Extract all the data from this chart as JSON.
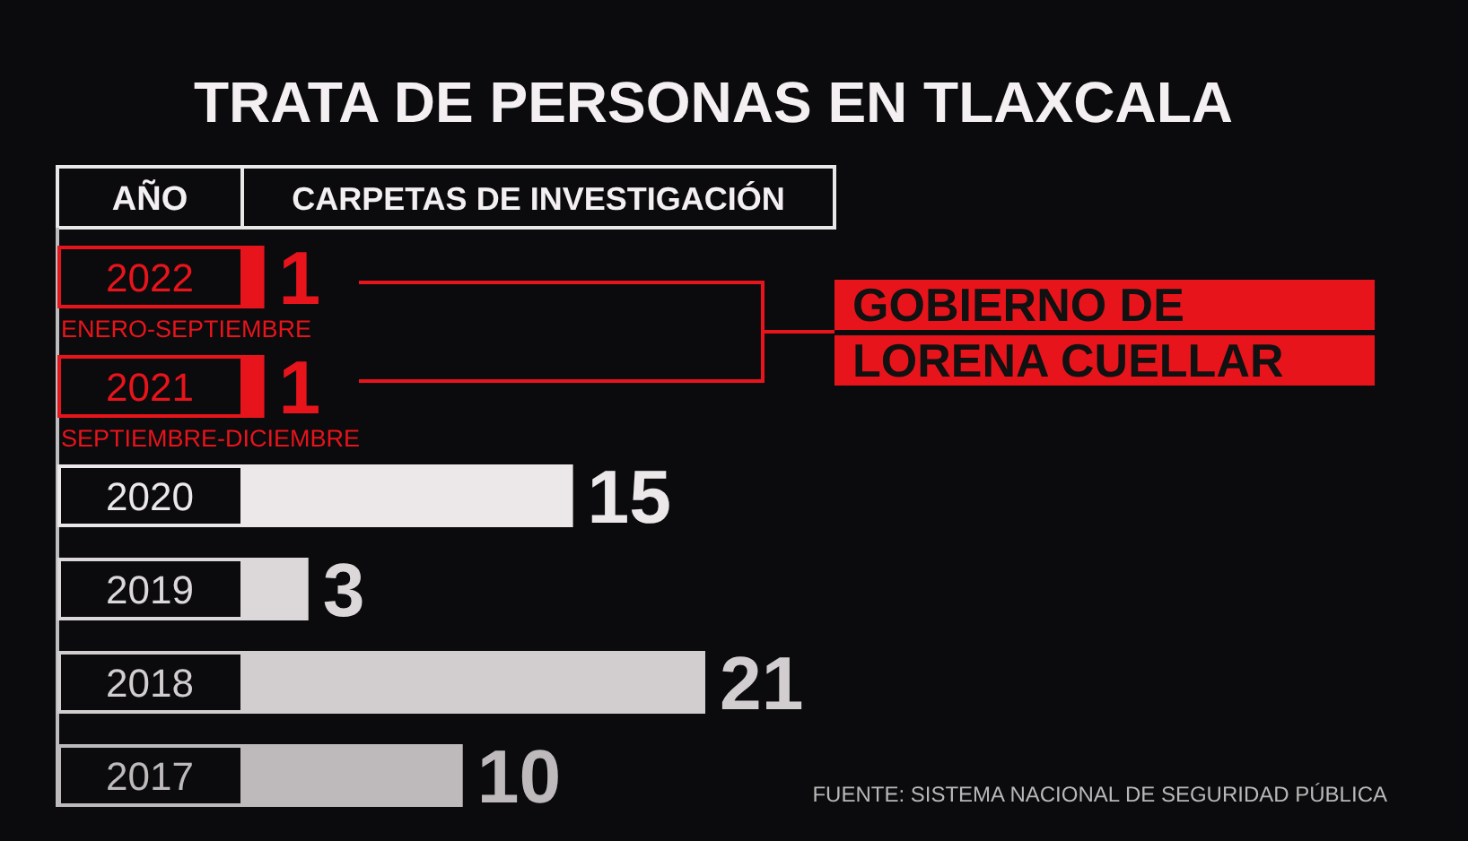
{
  "chart_data": {
    "type": "bar",
    "orientation": "horizontal",
    "title": "TRATA DE PERSONAS EN TLAXCALA",
    "ylabel": "AÑO",
    "xlabel": "CARPETAS DE INVESTIGACIÓN",
    "categories": [
      "2022\nENERO-SEPTIEMBRE",
      "2021\nSEPTIEMBRE-DICIEMBRE",
      "2020",
      "2019",
      "2018",
      "2017"
    ],
    "values": [
      1,
      1,
      15,
      3,
      21,
      10
    ],
    "colors": [
      "#e8141c",
      "#e8141c",
      "#ece8ea",
      "#dcd8da",
      "#d2cecf",
      "#bebabb"
    ],
    "data_labels": true,
    "annotations": [
      "GOBIERNO DE\nLORENA CUELLAR",
      "FUENTE: SISTEMA NACIONAL DE SEGURIDAD PÚBLICA"
    ]
  }
}
